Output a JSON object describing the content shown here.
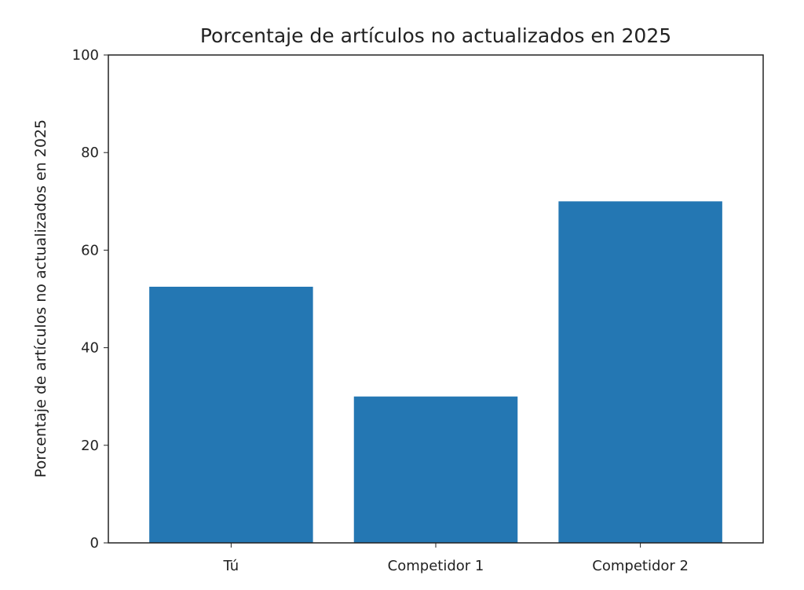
{
  "chart_data": {
    "type": "bar",
    "title": "Porcentaje de artículos no actualizados en 2025",
    "xlabel": "",
    "ylabel": "Porcentaje de artículos no actualizados en 2025",
    "categories": [
      "Tú",
      "Competidor 1",
      "Competidor 2"
    ],
    "values": [
      52.5,
      30,
      70
    ],
    "ylim": [
      0,
      100
    ],
    "yticks": [
      0,
      20,
      40,
      60,
      80,
      100
    ],
    "grid": false,
    "bar_color": "#2477b3"
  }
}
